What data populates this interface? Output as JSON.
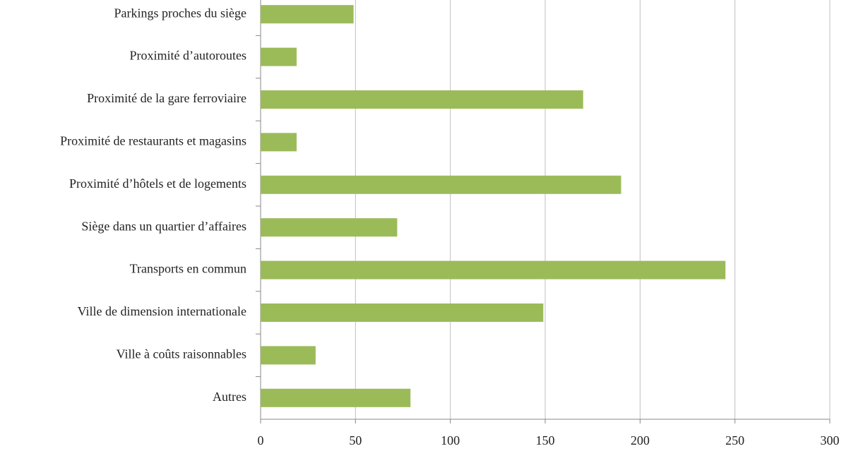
{
  "chart_data": {
    "type": "bar",
    "orientation": "horizontal",
    "categories": [
      "Parkings proches du siège",
      "Proximité d’autoroutes",
      "Proximité de la gare ferroviaire",
      "Proximité de restaurants et magasins",
      "Proximité d’hôtels et de logements",
      "Siège dans un quartier d’affaires",
      "Transports en commun",
      "Ville de dimension internationale",
      "Ville à coûts raisonnables",
      "Autres"
    ],
    "values": [
      49,
      19,
      170,
      19,
      190,
      72,
      245,
      149,
      29,
      79
    ],
    "color": "#9bbb59",
    "xlim": [
      0,
      300
    ],
    "xticks": [
      0,
      50,
      100,
      150,
      200,
      250,
      300
    ],
    "grid": true
  }
}
